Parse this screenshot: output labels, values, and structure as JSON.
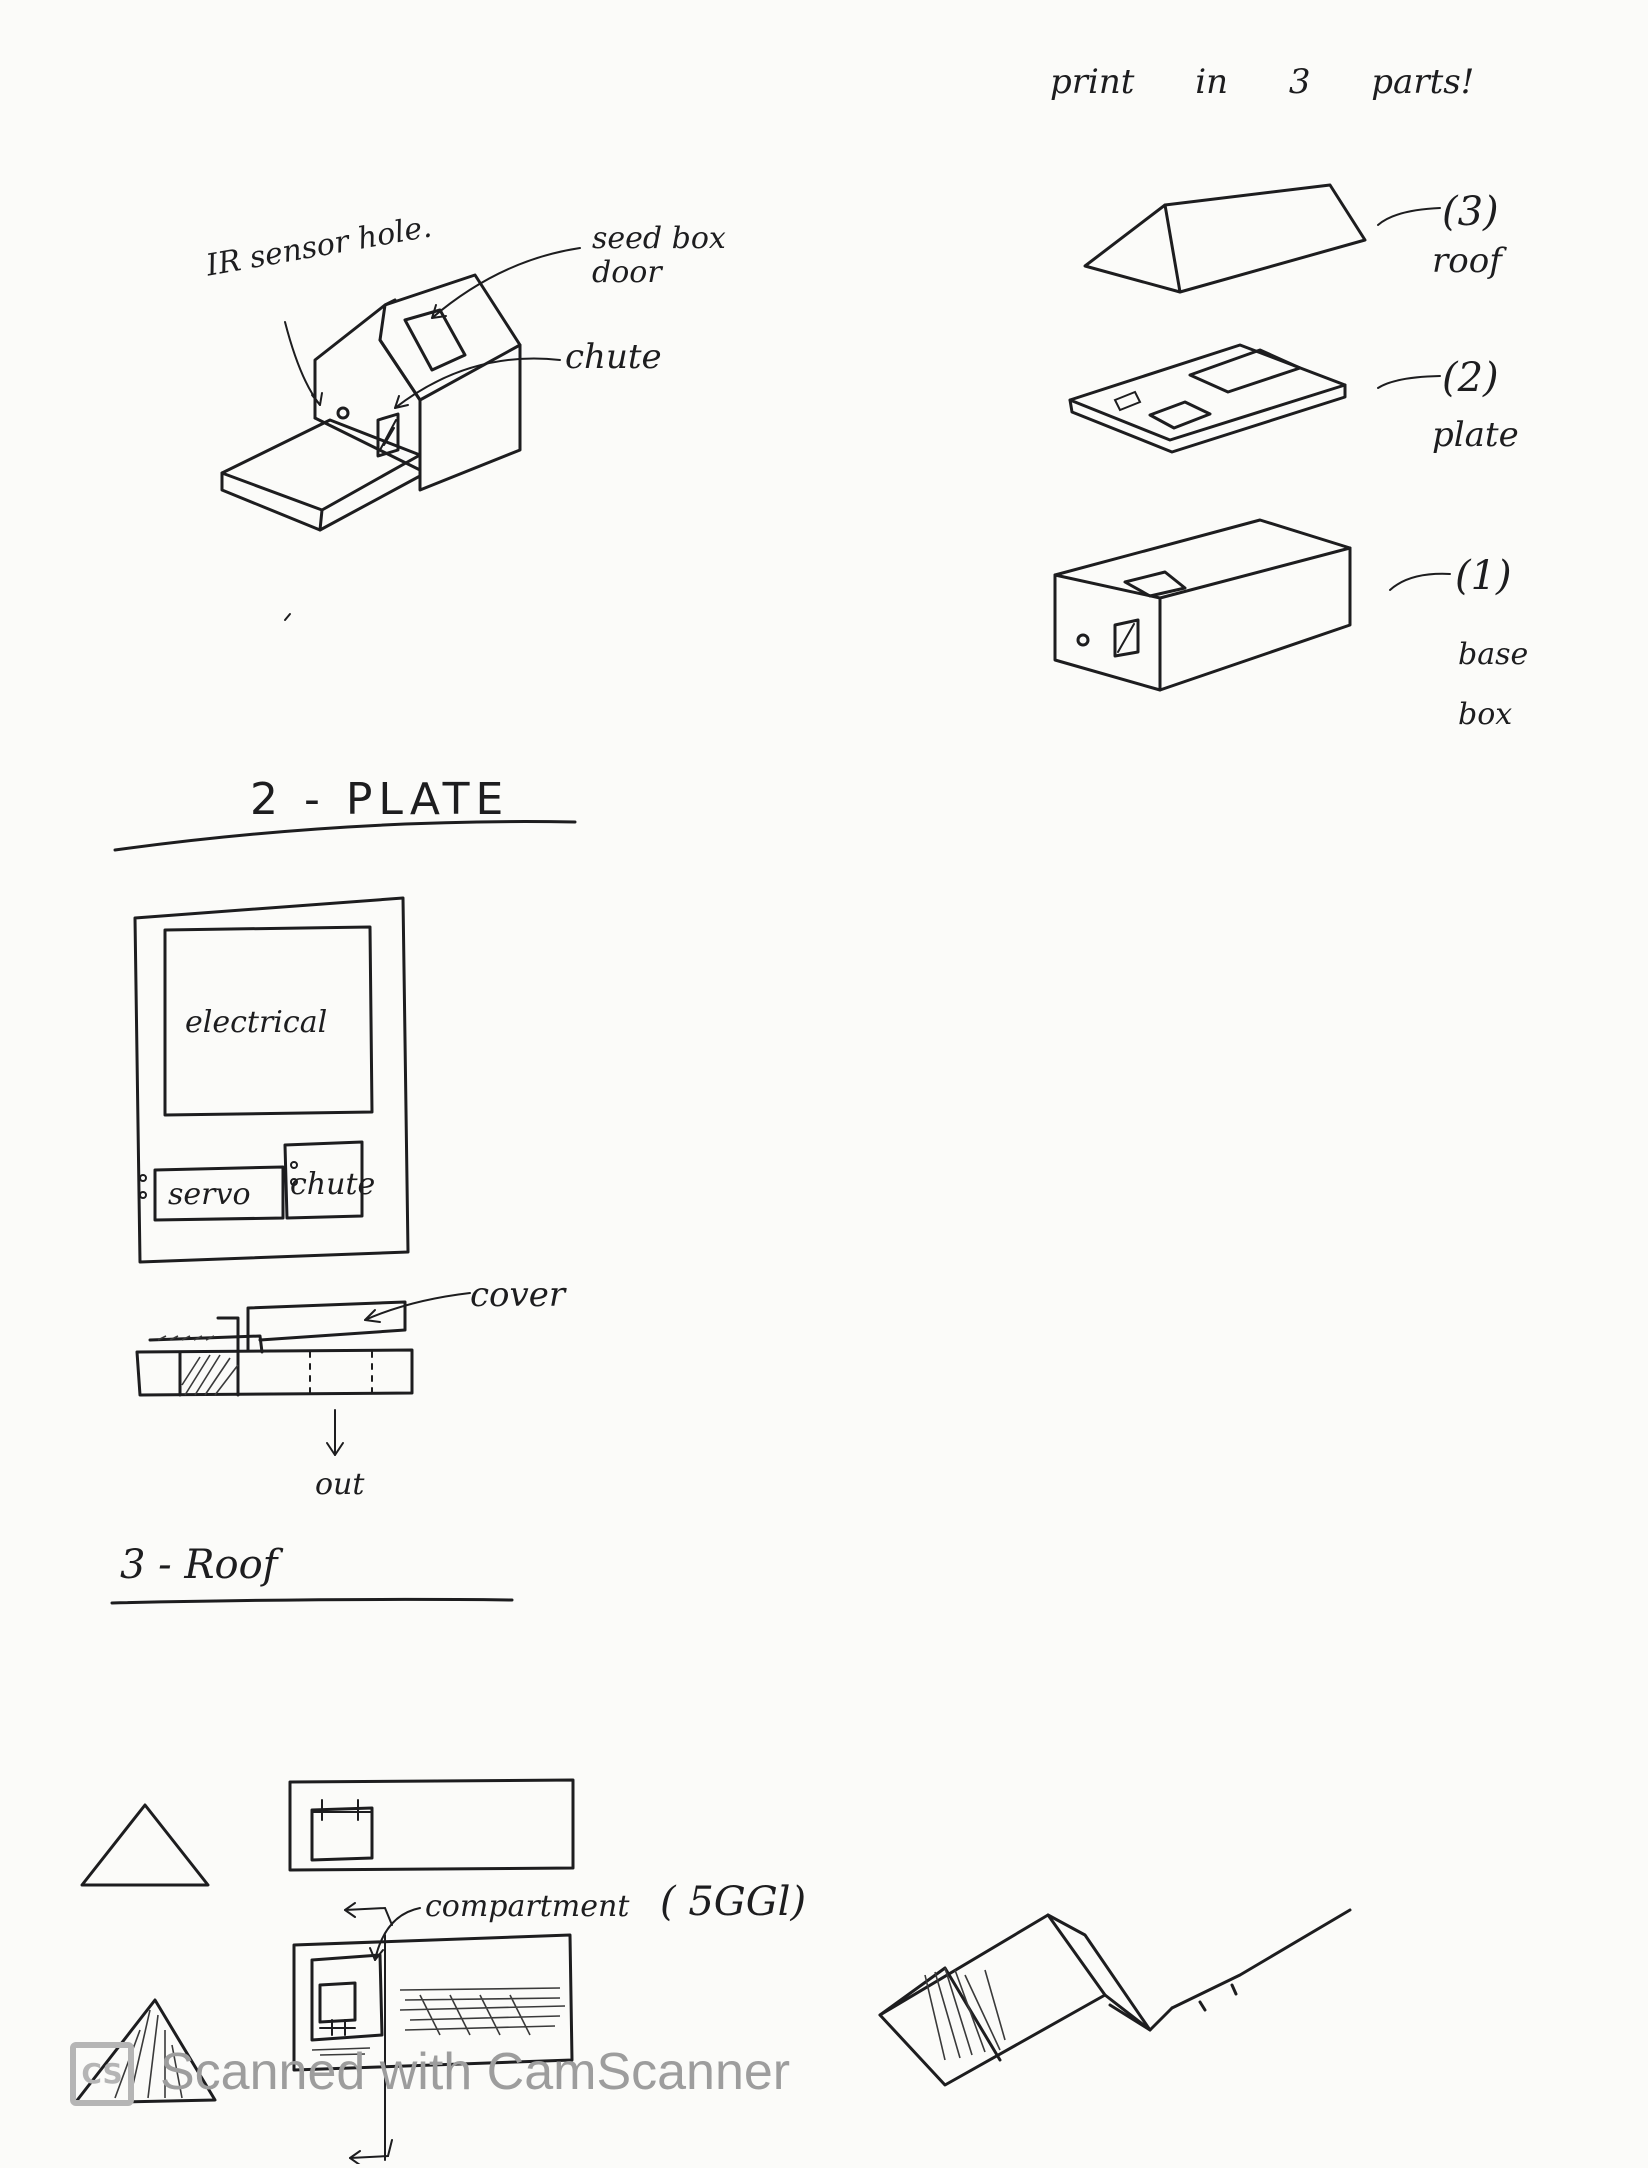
{
  "overview": {
    "labels": {
      "ir_sensor_hole": "IR sensor hole.",
      "seed_box_door": "seed box door",
      "chute": "chute"
    }
  },
  "parts": {
    "title": "print in 3 parts!",
    "roof": {
      "number": "(3)",
      "name": "roof"
    },
    "plate": {
      "number": "(2)",
      "name": "plate"
    },
    "base": {
      "number": "(1)",
      "name": "base box"
    }
  },
  "plate_section": {
    "heading": "2 - PLATE",
    "compartments": {
      "electrical": "electrical",
      "servo": "servo",
      "chute": "chute"
    },
    "cover_label": "cover",
    "out_label": "out"
  },
  "roof_section": {
    "heading": "3 - Roof",
    "compartment_label": "compartment",
    "compartment_spec": "( 5GGl)"
  },
  "watermark": {
    "logo": "CS",
    "text": "Scanned with CamScanner"
  }
}
